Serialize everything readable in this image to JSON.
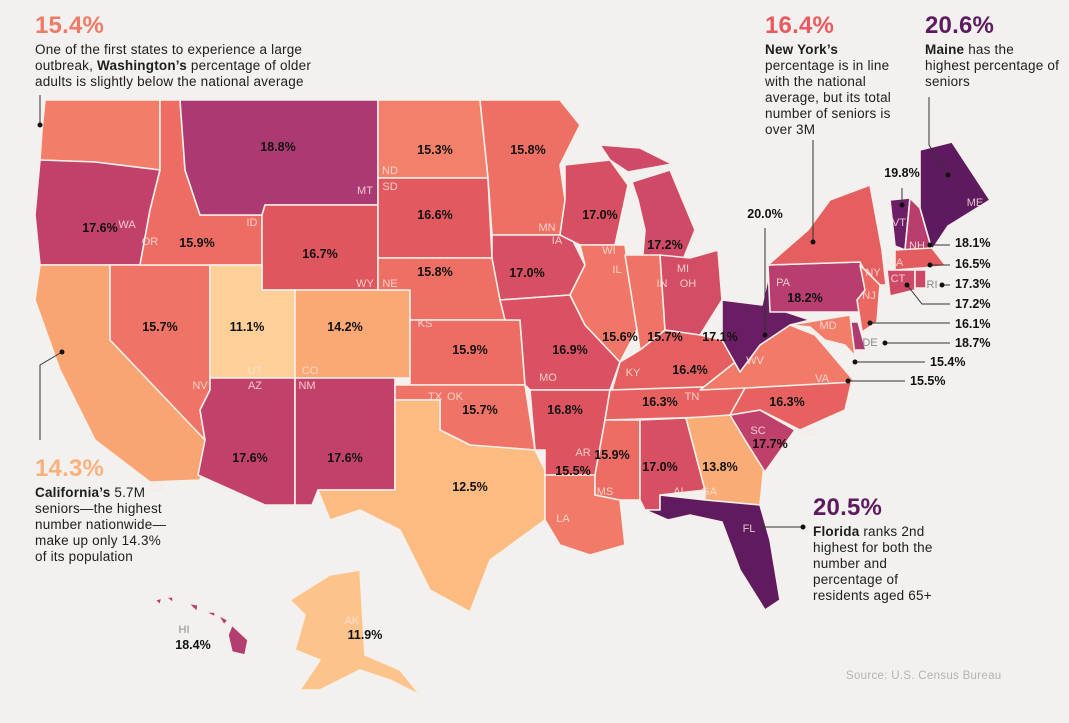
{
  "color_scale": [
    [
      11.0,
      "#fdd29c"
    ],
    [
      12.5,
      "#fcbb80"
    ],
    [
      14.2,
      "#faa874"
    ],
    [
      15.3,
      "#f3806a"
    ],
    [
      16.0,
      "#ec6a63"
    ],
    [
      16.7,
      "#e0565f"
    ],
    [
      17.6,
      "#c2416b"
    ],
    [
      18.8,
      "#ab3a72"
    ],
    [
      19.8,
      "#6c1f64"
    ],
    [
      20.6,
      "#5e1a5e"
    ]
  ],
  "states": {
    "WA": {
      "abbr": "WA",
      "value": "15.4%"
    },
    "OR": {
      "abbr": "OR",
      "value": "17.6%"
    },
    "CA": {
      "abbr": "CA",
      "value": "14.3%"
    },
    "NV": {
      "abbr": "NV",
      "value": "15.7%"
    },
    "ID": {
      "abbr": "ID",
      "value": "15.9%"
    },
    "MT": {
      "abbr": "MT",
      "value": "18.8%"
    },
    "WY": {
      "abbr": "WY",
      "value": "16.7%"
    },
    "UT": {
      "abbr": "UT",
      "value": "11.1%"
    },
    "CO": {
      "abbr": "CO",
      "value": "14.2%"
    },
    "AZ": {
      "abbr": "AZ",
      "value": "17.6%"
    },
    "NM": {
      "abbr": "NM",
      "value": "17.6%"
    },
    "ND": {
      "abbr": "ND",
      "value": "15.3%"
    },
    "SD": {
      "abbr": "SD",
      "value": "16.6%"
    },
    "NE": {
      "abbr": "NE",
      "value": "15.8%"
    },
    "KS": {
      "abbr": "KS",
      "value": "15.9%"
    },
    "OK": {
      "abbr": "OK",
      "value": "15.7%"
    },
    "TX": {
      "abbr": "TX",
      "value": "12.5%"
    },
    "MN": {
      "abbr": "MN",
      "value": "15.8%"
    },
    "IA": {
      "abbr": "IA",
      "value": "17.0%"
    },
    "MO": {
      "abbr": "MO",
      "value": "16.9%"
    },
    "AR": {
      "abbr": "AR",
      "value": "16.8%"
    },
    "LA": {
      "abbr": "LA",
      "value": "15.5%"
    },
    "WI": {
      "abbr": "WI",
      "value": "17.0%"
    },
    "IL": {
      "abbr": "IL",
      "value": "15.6%"
    },
    "MI": {
      "abbr": "MI",
      "value": "17.2%"
    },
    "IN": {
      "abbr": "IN",
      "value": "15.7%"
    },
    "OH": {
      "abbr": "OH",
      "value": "17.1%"
    },
    "KY": {
      "abbr": "KY",
      "value": "16.4%"
    },
    "TN": {
      "abbr": "TN",
      "value": "16.3%"
    },
    "MS": {
      "abbr": "MS",
      "value": "15.9%"
    },
    "AL": {
      "abbr": "AL",
      "value": "17.0%"
    },
    "GA": {
      "abbr": "GA",
      "value": "13.8%"
    },
    "FL": {
      "abbr": "FL",
      "value": "20.5%"
    },
    "SC": {
      "abbr": "SC",
      "value": "17.7%"
    },
    "NC": {
      "abbr": "NC",
      "value": "16.3%"
    },
    "VA": {
      "abbr": "VA",
      "value": "15.5%"
    },
    "WV": {
      "abbr": "WV",
      "value": "20.0%"
    },
    "PA": {
      "abbr": "PA",
      "value": "18.2%"
    },
    "NY": {
      "abbr": "NY",
      "value": "16.4%"
    },
    "NJ": {
      "abbr": "NJ",
      "value": "16.1%"
    },
    "DE": {
      "abbr": "DE",
      "value": "18.7%"
    },
    "MD": {
      "abbr": "MD",
      "value": "15.4%"
    },
    "VT": {
      "abbr": "VT",
      "value": "19.8%"
    },
    "NH": {
      "abbr": "NH",
      "value": "18.1%"
    },
    "ME": {
      "abbr": "ME",
      "value": "20.6%"
    },
    "MA": {
      "abbr": "MA",
      "value": "16.5%"
    },
    "CT": {
      "abbr": "CT",
      "value": "17.2%"
    },
    "RI": {
      "abbr": "RI",
      "value": "17.3%"
    },
    "AK": {
      "abbr": "AK",
      "value": "11.9%"
    },
    "HI": {
      "abbr": "HI",
      "value": "18.4%"
    }
  },
  "annotations": {
    "wa": {
      "pct": "15.4%",
      "color": "#f07a66",
      "pre": "One of the first states to experience a large outbreak, ",
      "bold": "Washington’s",
      "post": " percentage of older adults is slightly below the national average"
    },
    "ny": {
      "pct": "16.4%",
      "color": "#e9595f",
      "pre": "",
      "bold": "New York’s",
      "post": " percentage is in line with the national average, but its total number of seniors is over 3M"
    },
    "me": {
      "pct": "20.6%",
      "color": "#5e1a5e",
      "pre": "",
      "bold": "Maine",
      "post": " has the highest percentage of seniors"
    },
    "ca": {
      "pct": "14.3%",
      "color": "#fbb07c",
      "pre": "",
      "bold": "California’s",
      "post": " 5.7M seniors—the highest number nationwide—make up only 14.3% of its population"
    },
    "fl": {
      "pct": "20.5%",
      "color": "#5e1a5e",
      "pre": "",
      "bold": "Florida",
      "post": " ranks 2nd highest for both the number and percentage of residents aged 65+"
    }
  },
  "source": "Source: U.S. Census Bureau"
}
